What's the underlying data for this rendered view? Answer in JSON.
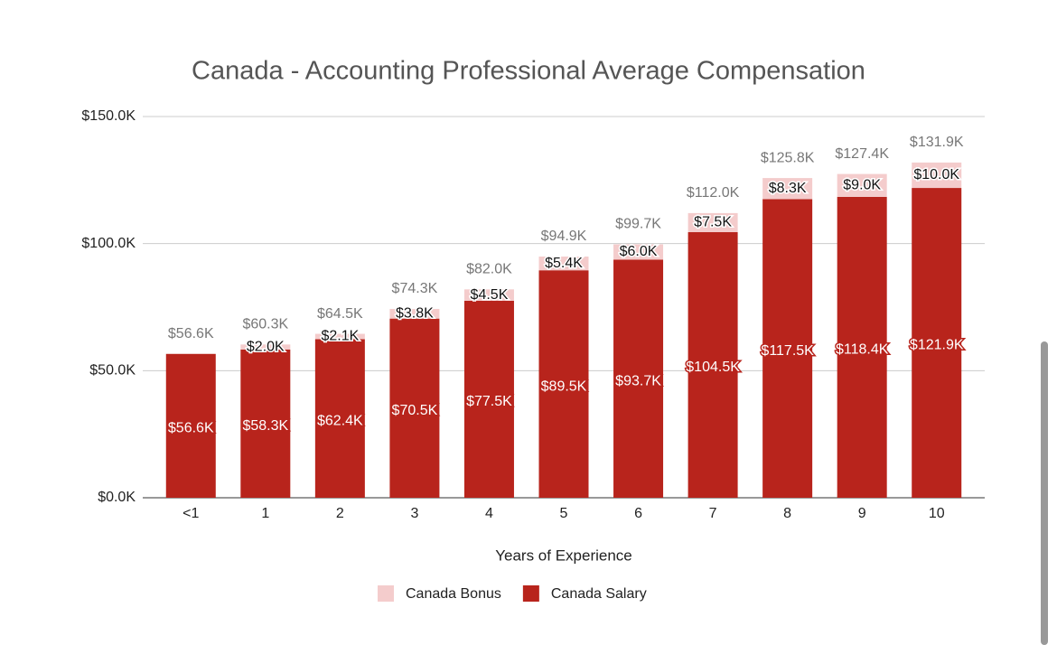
{
  "chart_data": {
    "type": "stacked_bar",
    "title": "Canada - Accounting Professional Average Compensation",
    "x_label": "Years of Experience",
    "categories": [
      "<1",
      "1",
      "2",
      "3",
      "4",
      "5",
      "6",
      "7",
      "8",
      "9",
      "10"
    ],
    "series": [
      {
        "name": "Canada Bonus",
        "color": "#f4cccc",
        "values": [
          null,
          2.0,
          2.1,
          3.8,
          4.5,
          5.4,
          6.0,
          7.5,
          8.3,
          9.0,
          10.0
        ],
        "value_labels": [
          null,
          "$2.0K",
          "$2.1K",
          "$3.8K",
          "$4.5K",
          "$5.4K",
          "$6.0K",
          "$7.5K",
          "$8.3K",
          "$9.0K",
          "$10.0K"
        ]
      },
      {
        "name": "Canada Salary",
        "color": "#b8241c",
        "values": [
          56.6,
          58.3,
          62.4,
          70.5,
          77.5,
          89.5,
          93.7,
          104.5,
          117.5,
          118.4,
          121.9
        ],
        "value_labels": [
          "$56.6K",
          "$58.3K",
          "$62.4K",
          "$70.5K",
          "$77.5K",
          "$89.5K",
          "$93.7K",
          "$104.5K",
          "$117.5K",
          "$118.4K",
          "$121.9K"
        ]
      }
    ],
    "totals": {
      "values": [
        56.6,
        60.3,
        64.5,
        74.3,
        82.0,
        94.9,
        99.7,
        112.0,
        125.8,
        127.4,
        131.9
      ],
      "value_labels": [
        "$56.6K",
        "$60.3K",
        "$64.5K",
        "$74.3K",
        "$82.0K",
        "$94.9K",
        "$99.7K",
        "$112.0K",
        "$125.8K",
        "$127.4K",
        "$131.9K"
      ]
    },
    "ylim": [
      0,
      150
    ],
    "yticks": [
      {
        "value": 0,
        "label": "$0.0K"
      },
      {
        "value": 50,
        "label": "$50.0K"
      },
      {
        "value": 100,
        "label": "$100.0K"
      },
      {
        "value": 150,
        "label": "$150.0K"
      }
    ],
    "grid": true
  }
}
